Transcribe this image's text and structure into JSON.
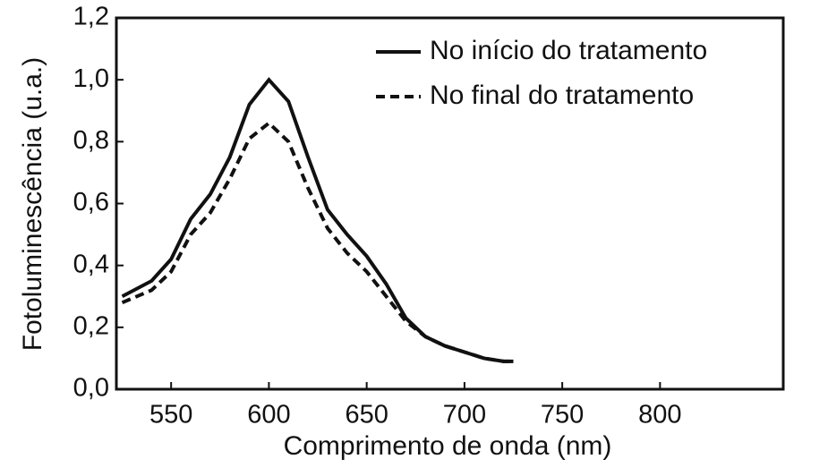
{
  "chart_data": {
    "type": "line",
    "x_label": "Comprimento de onda (nm)",
    "y_label": "Fotoluminescência (u.a.)",
    "x": [
      525,
      540,
      550,
      560,
      570,
      580,
      590,
      600,
      610,
      620,
      630,
      640,
      650,
      660,
      670,
      680,
      690,
      700,
      710,
      720,
      725
    ],
    "series": [
      {
        "name": "No início do tratamento",
        "color": "#111111",
        "dash": "solid",
        "values": [
          0.3,
          0.35,
          0.42,
          0.55,
          0.63,
          0.75,
          0.92,
          1.0,
          0.93,
          0.75,
          0.58,
          0.5,
          0.43,
          0.34,
          0.23,
          0.17,
          0.14,
          0.12,
          0.1,
          0.09,
          0.09
        ]
      },
      {
        "name": "No final do tratamento",
        "color": "#111111",
        "dash": "dashed",
        "values": [
          0.28,
          0.32,
          0.38,
          0.5,
          0.57,
          0.68,
          0.81,
          0.86,
          0.8,
          0.65,
          0.52,
          0.44,
          0.38,
          0.3,
          0.22,
          0.17,
          0.14,
          0.12,
          0.1,
          0.09,
          0.09
        ]
      }
    ],
    "xlim": [
      522,
      863
    ],
    "xticks": [
      550,
      600,
      650,
      700,
      750,
      800
    ],
    "ylim": [
      0,
      1.2
    ],
    "yticks": [
      {
        "value": 0,
        "label": "0,0"
      },
      {
        "value": 0.2,
        "label": "0,2"
      },
      {
        "value": 0.4,
        "label": "0,4"
      },
      {
        "value": 0.6,
        "label": "0,6"
      },
      {
        "value": 0.8,
        "label": "0,8"
      },
      {
        "value": 1.0,
        "label": "1,0"
      },
      {
        "value": 1.2,
        "label": "1,2"
      }
    ],
    "legend": "upper right"
  }
}
